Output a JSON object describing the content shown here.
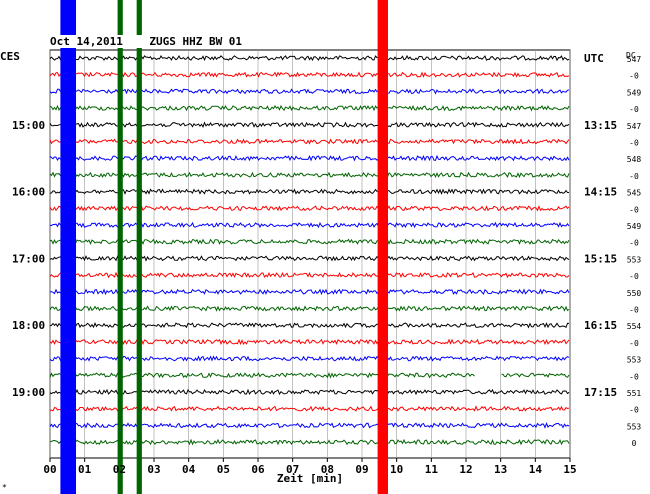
{
  "header": {
    "title": "Oct 14,2011    ZUGS HHZ BW 01",
    "left_zone": "CES",
    "right_zone": "UTC",
    "dc_label": "DC",
    "corner_mark": "*"
  },
  "chart_data": {
    "type": "line",
    "title": "Oct 14,2011    ZUGS HHZ BW 01",
    "xlabel": "Zeit [min]",
    "ylabel": "",
    "xlim": [
      0,
      15
    ],
    "x_ticks": [
      "00",
      "01",
      "02",
      "03",
      "04",
      "05",
      "06",
      "07",
      "08",
      "09",
      "10",
      "11",
      "12",
      "13",
      "14",
      "15"
    ],
    "trace_count": 24,
    "trace_colors": [
      "#000000",
      "#ff0000",
      "#0000ff",
      "#006400"
    ],
    "left_time_labels": [
      {
        "trace": 4,
        "label": "15:00"
      },
      {
        "trace": 8,
        "label": "16:00"
      },
      {
        "trace": 12,
        "label": "17:00"
      },
      {
        "trace": 16,
        "label": "18:00"
      },
      {
        "trace": 20,
        "label": "19:00"
      }
    ],
    "right_time_labels": [
      {
        "trace": 0,
        "label": "UTC"
      },
      {
        "trace": 4,
        "label": "13:15"
      },
      {
        "trace": 8,
        "label": "14:15"
      },
      {
        "trace": 12,
        "label": "15:15"
      },
      {
        "trace": 16,
        "label": "16:15"
      },
      {
        "trace": 20,
        "label": "17:15"
      }
    ],
    "dc_values": [
      "547",
      "-0",
      "549",
      "-0",
      "547",
      "-0",
      "548",
      "-0",
      "545",
      "-0",
      "549",
      "-0",
      "553",
      "-0",
      "550",
      "-0",
      "554",
      "-0",
      "553",
      "-0",
      "551",
      "-0",
      "553",
      "0"
    ],
    "events": [
      {
        "x_start": 0.3,
        "x_end": 0.75,
        "trace_start": 0,
        "trace_end": 23,
        "color": "#0000ff"
      },
      {
        "x_start": 1.95,
        "x_end": 2.1,
        "trace_start": 0,
        "trace_end": 23,
        "color": "#006400"
      },
      {
        "x_start": 2.5,
        "x_end": 2.65,
        "trace_start": 0,
        "trace_end": 23,
        "color": "#006400"
      },
      {
        "x_start": 9.45,
        "x_end": 9.75,
        "trace_start": 0,
        "trace_end": 23,
        "color": "#ff0000"
      }
    ],
    "gaps": [
      {
        "trace": 19,
        "x_start": 12.25,
        "x_end": 13.0
      }
    ]
  }
}
